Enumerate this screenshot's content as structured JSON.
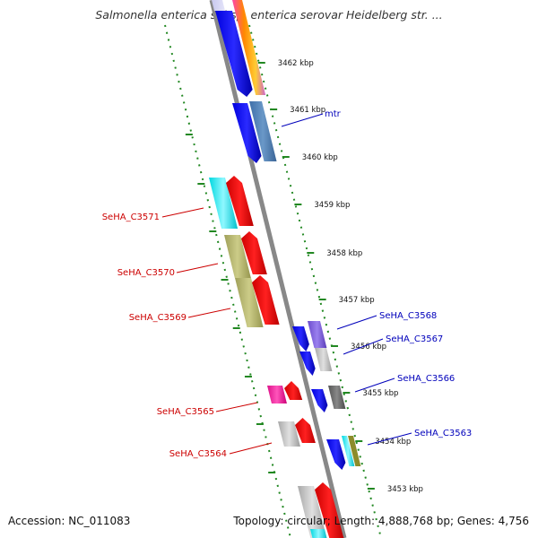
{
  "title": "Salmonella enterica subsp. enterica serovar Heidelberg str. ...",
  "footer": {
    "accession": "Accession: NC_011083",
    "summary": "Topology: circular; Length: 4,888,768 bp; Genes: 4,756"
  },
  "colors": {
    "forward_label": "#0000bb",
    "reverse_label": "#cc0000",
    "backbone": "#888888",
    "ruler_dots": "#228822"
  },
  "ticks": [
    {
      "label": "3462 kbp"
    },
    {
      "label": "3461 kbp"
    },
    {
      "label": "3460 kbp"
    },
    {
      "label": "3459 kbp"
    },
    {
      "label": "3458 kbp"
    },
    {
      "label": "3457 kbp"
    },
    {
      "label": "3456 kbp"
    },
    {
      "label": "3455 kbp"
    },
    {
      "label": "3454 kbp"
    },
    {
      "label": "3453 kbp"
    }
  ],
  "forward_labels": [
    {
      "text": "mtr"
    },
    {
      "text": "SeHA_C3568"
    },
    {
      "text": "SeHA_C3567"
    },
    {
      "text": "SeHA_C3566"
    },
    {
      "text": "SeHA_C3563"
    }
  ],
  "reverse_labels": [
    {
      "text": "SeHA_C3571"
    },
    {
      "text": "SeHA_C3570"
    },
    {
      "text": "SeHA_C3569"
    },
    {
      "text": "SeHA_C3565"
    },
    {
      "text": "SeHA_C3564"
    }
  ]
}
